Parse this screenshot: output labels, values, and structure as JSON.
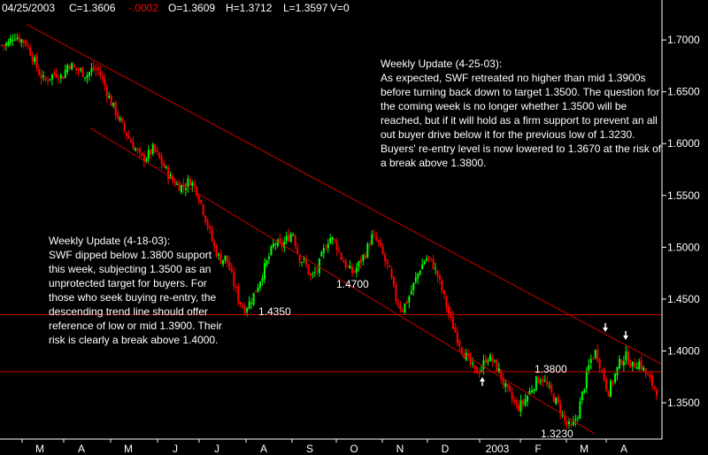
{
  "header": {
    "date": "04/25/2003",
    "close": "C=1.3606",
    "change": "-.0002",
    "open": "O=1.3609",
    "high": "H=1.3712",
    "low": "L=1.3597",
    "volume": "V=0",
    "change_color": "#ff0000"
  },
  "colors": {
    "background": "#000000",
    "up_candle": "#00ff00",
    "down_candle": "#ff0000",
    "lines": "#cc0000",
    "text": "#ffffff"
  },
  "chart_data": {
    "type": "candlestick",
    "ylim": [
      1.315,
      1.73
    ],
    "yticks": [
      "1.7000",
      "1.6500",
      "1.6000",
      "1.5500",
      "1.5000",
      "1.4500",
      "1.4000",
      "1.3500"
    ],
    "ytick_values": [
      1.7,
      1.65,
      1.6,
      1.55,
      1.5,
      1.45,
      1.4,
      1.35
    ],
    "xticks": [
      "M",
      "A",
      "M",
      "J",
      "J",
      "A",
      "S",
      "O",
      "N",
      "D",
      "2003",
      "F",
      "M",
      "A"
    ],
    "grid": false,
    "horizontal_lines": [
      1.435,
      1.38
    ],
    "trend_channel": {
      "upper": {
        "from": [
          "2002-03-01",
          1.715
        ],
        "to": [
          "2003-04-30",
          1.387
        ]
      },
      "lower": {
        "from": [
          "2002-04-15",
          1.615
        ],
        "to": [
          "2003-03-25",
          1.32
        ]
      }
    },
    "annotations": [
      {
        "text": "1.4350",
        "value": 1.435
      },
      {
        "text": "1.4700",
        "value": 1.47
      },
      {
        "text": "1.3800",
        "value": 1.38
      },
      {
        "text": "1.3230",
        "value": 1.323
      }
    ],
    "arrows": [
      {
        "direction": "up",
        "value": 1.377
      },
      {
        "direction": "down",
        "value": 1.404
      },
      {
        "direction": "down",
        "value": 1.402
      }
    ],
    "price_path": [
      1.695,
      1.696,
      1.705,
      1.701,
      1.697,
      1.685,
      1.67,
      1.66,
      1.665,
      1.668,
      1.664,
      1.678,
      1.672,
      1.67,
      1.666,
      1.672,
      1.67,
      1.655,
      1.64,
      1.628,
      1.615,
      1.605,
      1.595,
      1.585,
      1.588,
      1.595,
      1.585,
      1.575,
      1.565,
      1.56,
      1.558,
      1.565,
      1.557,
      1.54,
      1.52,
      1.5,
      1.488,
      1.49,
      1.47,
      1.45,
      1.44,
      1.448,
      1.46,
      1.475,
      1.49,
      1.505,
      1.5,
      1.508,
      1.515,
      1.49,
      1.485,
      1.47,
      1.478,
      1.495,
      1.51,
      1.505,
      1.49,
      1.48,
      1.475,
      1.485,
      1.495,
      1.51,
      1.505,
      1.49,
      1.475,
      1.45,
      1.44,
      1.45,
      1.465,
      1.48,
      1.49,
      1.485,
      1.47,
      1.45,
      1.43,
      1.415,
      1.4,
      1.39,
      1.38,
      1.382,
      1.395,
      1.39,
      1.38,
      1.365,
      1.355,
      1.345,
      1.35,
      1.36,
      1.37,
      1.375,
      1.365,
      1.355,
      1.345,
      1.33,
      1.325,
      1.34,
      1.365,
      1.39,
      1.4,
      1.38,
      1.36,
      1.375,
      1.39,
      1.395,
      1.385,
      1.39,
      1.38,
      1.37,
      1.362
    ]
  },
  "labels": {
    "l1": "1.4350",
    "l2": "1.4700",
    "l3": "1.3800",
    "l4": "1.3230"
  },
  "note1": {
    "head": "Weekly Update (4-25-03):",
    "body": "As expected, SWF retreated no higher than mid 1.3900s before turning back down to target 1.3500. The question for the coming week is no longer whether 1.3500 will be reached, but if it will hold as a firm support to prevent an all out buyer drive below it for the previous low of 1.3230. Buyers' re-entry level is now lowered to 1.3670 at the risk of a break above 1.3800."
  },
  "note2": {
    "head": "Weekly Update (4-18-03):",
    "body": "SWF dipped below 1.3800 support this week, subjecting 1.3500 as an unprotected target for buyers. For those who seek buying re-entry, the descending trend line should offer reference of low or mid 1.3900. Their risk is clearly a break above 1.4000."
  }
}
